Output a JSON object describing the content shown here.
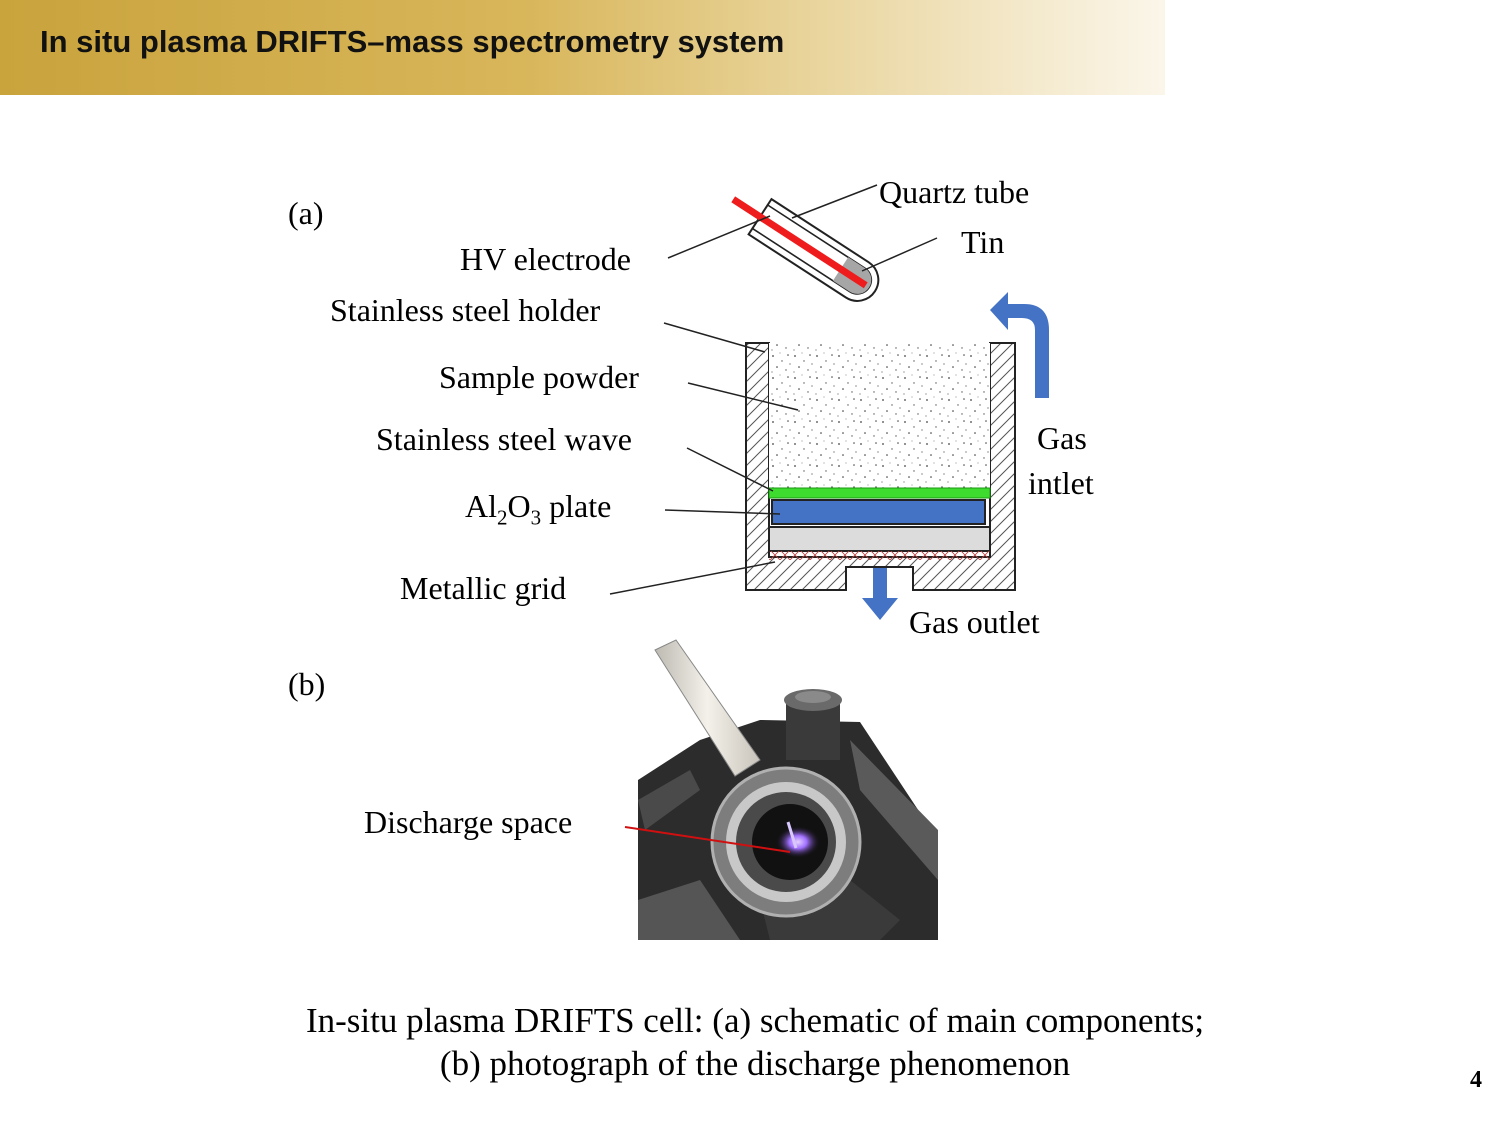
{
  "slide": {
    "title": "In situ plasma DRIFTS–mass spectrometry system",
    "page_number": "4"
  },
  "figure_a": {
    "panel_label": "(a)",
    "labels": {
      "quartz_tube": "Quartz tube",
      "tin": "Tin",
      "hv_electrode": "HV electrode",
      "stainless_steel_holder": "Stainless steel holder",
      "sample_powder": "Sample powder",
      "stainless_steel_wave": "Stainless steel wave",
      "al2o3_plate": {
        "al": "Al",
        "sub1": "2",
        "o": "O",
        "sub2": "3",
        "rest": " plate"
      },
      "metallic_grid": "Metallic grid",
      "gas_inlet_line1": "Gas",
      "gas_inlet_line2": "intlet",
      "gas_outlet": "Gas outlet"
    },
    "colors": {
      "electrode": "#ee1c1c",
      "tin": "#a6a6a6",
      "wave": "#3ddc2e",
      "al2o3": "#4472c4",
      "arrow": "#4472c4",
      "grid": "#c04040"
    }
  },
  "figure_b": {
    "panel_label": "(b)",
    "labels": {
      "discharge_space": "Discharge space"
    },
    "colors": {
      "pointer": "#d01010",
      "plasma": "#a070ff"
    }
  },
  "caption": {
    "line1": "In-situ plasma DRIFTS cell: (a) schematic of main components;",
    "line2": "(b) photograph of the discharge phenomenon"
  }
}
